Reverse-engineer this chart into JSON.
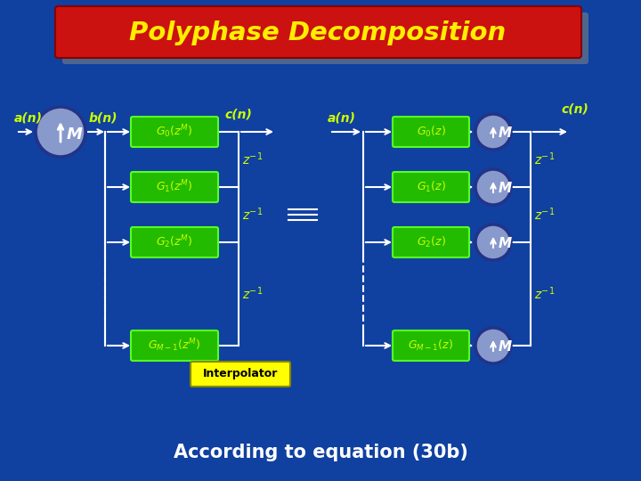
{
  "bg_color": "#1040a0",
  "title_text": "Polyphase Decomposition",
  "title_bg": "#cc1111",
  "title_fg": "#ffee00",
  "bottom_text": "According to equation (30b)",
  "interp_label": "Interpolator",
  "interp_bg": "#ffff00",
  "interp_fg": "#000000",
  "green_box_color": "#22bb00",
  "green_box_edge": "#55ff22",
  "green_text_color": "#ccff00",
  "circle_color": "#8899cc",
  "circle_edge": "#223388",
  "circle_text_color": "#ffffff",
  "arrow_color": "#ffffff",
  "label_color": "#ccff00",
  "zinv_color": "#ccff00",
  "eq_color": "#ffffff",
  "shadow_color": "#667788"
}
